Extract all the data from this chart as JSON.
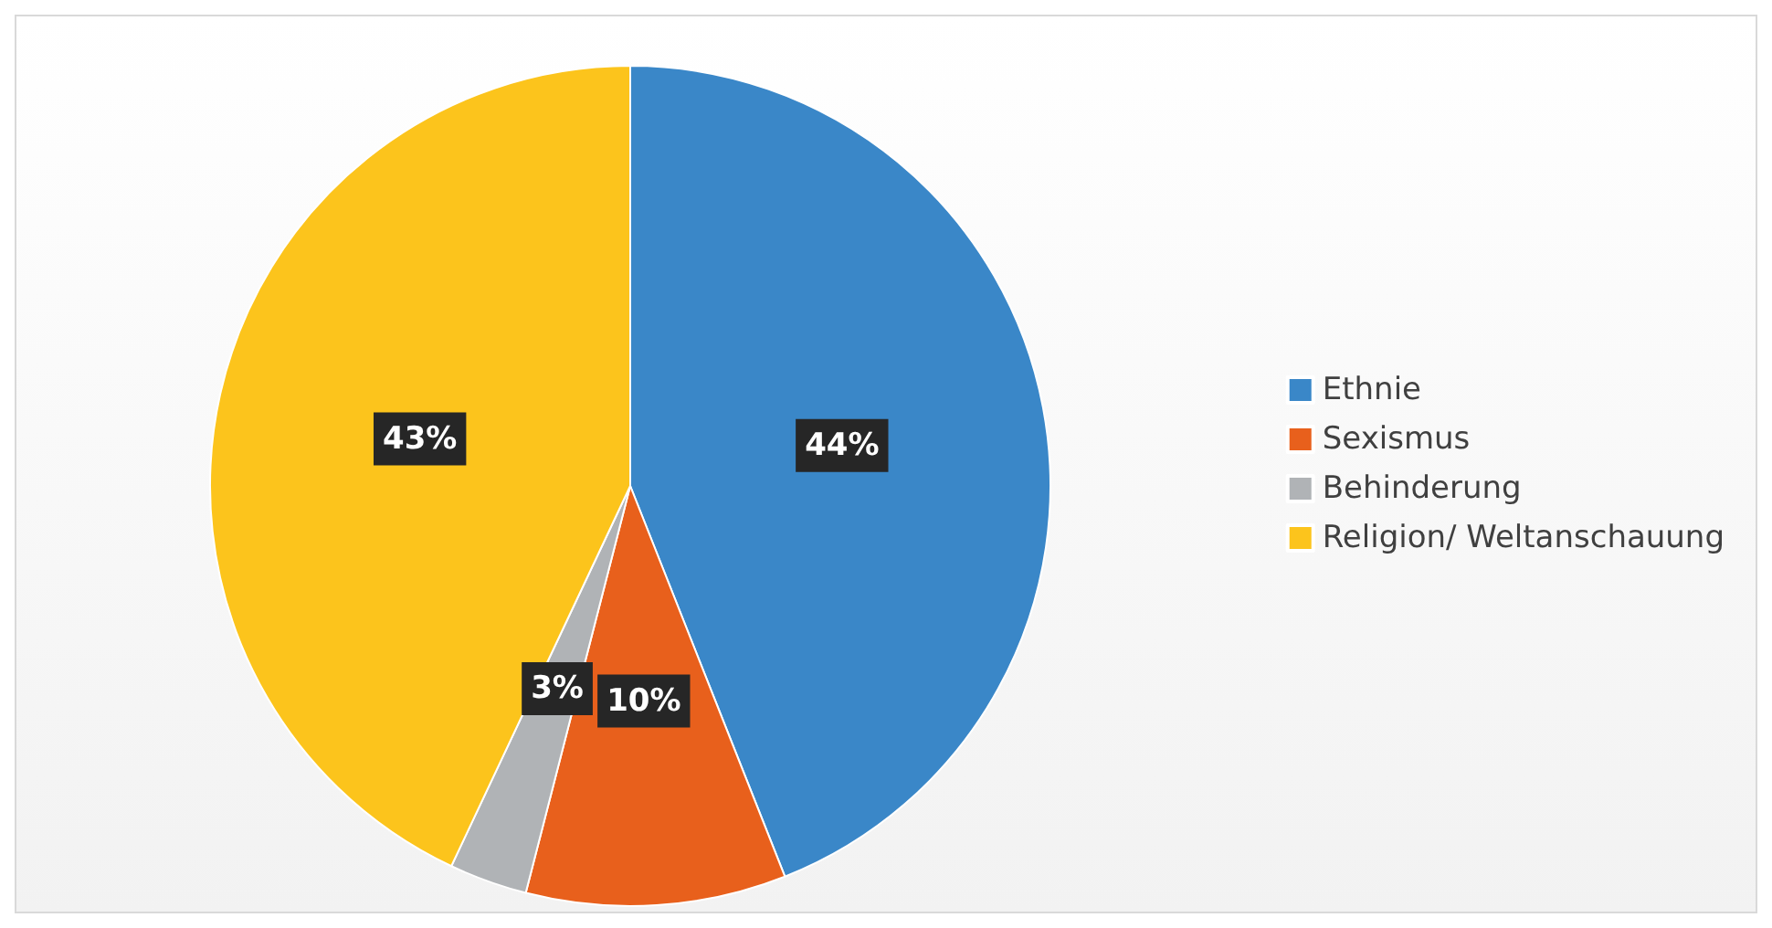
{
  "chart_data": {
    "type": "pie",
    "categories": [
      "Ethnie",
      "Sexismus",
      "Behinderung",
      "Religion/ Weltanschauung"
    ],
    "values": [
      44,
      10,
      3,
      43
    ],
    "colors": [
      "#3a87c8",
      "#e8601c",
      "#b0b3b6",
      "#fcc41c"
    ],
    "value_labels": [
      "44%",
      "10%",
      "3%",
      "43%"
    ],
    "legend": "right"
  }
}
